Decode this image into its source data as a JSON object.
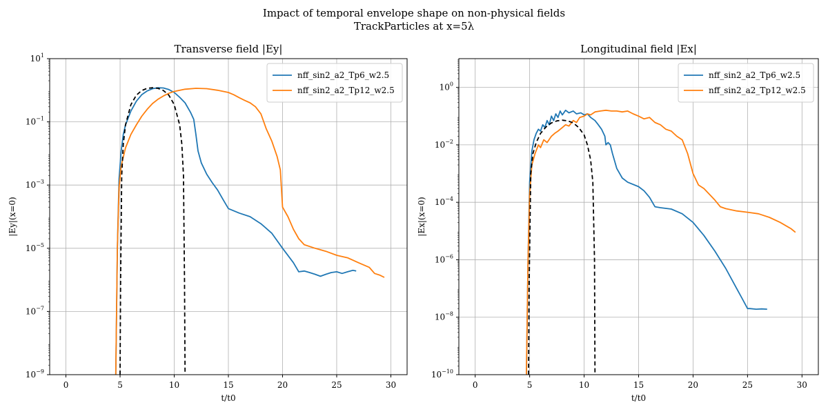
{
  "figure": {
    "title_line1": "Impact of temporal envelope shape on non-physical fields",
    "title_line2": "TrackParticles at x=5λ"
  },
  "colors": {
    "series1": "#1f77b4",
    "series2": "#ff7f0e",
    "reference": "#000000",
    "grid": "#b0b0b0"
  },
  "chart_data": [
    {
      "type": "line",
      "title": "Transverse field |Ey|",
      "xlabel": "t/t0",
      "ylabel": "|Ey|(x=0)",
      "yscale": "log",
      "xlim": [
        -1.5,
        31.5
      ],
      "ylim_exp": [
        -9,
        1
      ],
      "xticks": [
        0,
        5,
        10,
        15,
        20,
        25,
        30
      ],
      "yticks_exp": [
        -9,
        -7,
        -5,
        -3,
        -1,
        1
      ],
      "grid": true,
      "legend_position": "top-right",
      "series": [
        {
          "name": "nff_sin2_a2_Tp6_w2.5",
          "style": "solid",
          "points": [
            [
              4.6,
              1e-09
            ],
            [
              4.75,
              1e-05
            ],
            [
              4.9,
              0.0015
            ],
            [
              5.1,
              0.012
            ],
            [
              5.3,
              0.04
            ],
            [
              5.5,
              0.08
            ],
            [
              6,
              0.22
            ],
            [
              6.5,
              0.45
            ],
            [
              7,
              0.72
            ],
            [
              7.5,
              0.95
            ],
            [
              8,
              1.12
            ],
            [
              8.5,
              1.2
            ],
            [
              9,
              1.18
            ],
            [
              9.5,
              1.05
            ],
            [
              10,
              0.85
            ],
            [
              10.5,
              0.6
            ],
            [
              11,
              0.4
            ],
            [
              11.5,
              0.2
            ],
            [
              11.8,
              0.12
            ],
            [
              12,
              0.04
            ],
            [
              12.2,
              0.012
            ],
            [
              12.5,
              0.005
            ],
            [
              13,
              0.0022
            ],
            [
              13.5,
              0.0012
            ],
            [
              14,
              0.0007
            ],
            [
              14.5,
              0.00035
            ],
            [
              15,
              0.00018
            ],
            [
              16,
              0.00013
            ],
            [
              17,
              0.0001
            ],
            [
              18,
              6e-05
            ],
            [
              19,
              3e-05
            ],
            [
              20,
              1e-05
            ],
            [
              21,
              3.5e-06
            ],
            [
              21.5,
              1.8e-06
            ],
            [
              22,
              1.9e-06
            ],
            [
              22.5,
              1.7e-06
            ],
            [
              23,
              1.5e-06
            ],
            [
              23.5,
              1.3e-06
            ],
            [
              24,
              1.5e-06
            ],
            [
              24.5,
              1.7e-06
            ],
            [
              25,
              1.8e-06
            ],
            [
              25.5,
              1.6e-06
            ],
            [
              26,
              1.8e-06
            ],
            [
              26.5,
              2e-06
            ],
            [
              26.8,
              1.9e-06
            ]
          ]
        },
        {
          "name": "nff_sin2_a2_Tp12_w2.5",
          "style": "solid",
          "points": [
            [
              4.6,
              1e-09
            ],
            [
              4.75,
              1e-05
            ],
            [
              4.9,
              0.0008
            ],
            [
              5.1,
              0.004
            ],
            [
              5.5,
              0.015
            ],
            [
              6,
              0.04
            ],
            [
              6.5,
              0.08
            ],
            [
              7,
              0.15
            ],
            [
              7.5,
              0.25
            ],
            [
              8,
              0.38
            ],
            [
              8.5,
              0.52
            ],
            [
              9,
              0.66
            ],
            [
              9.5,
              0.8
            ],
            [
              10,
              0.92
            ],
            [
              11,
              1.08
            ],
            [
              12,
              1.15
            ],
            [
              13,
              1.12
            ],
            [
              14,
              1.0
            ],
            [
              15,
              0.85
            ],
            [
              15.5,
              0.72
            ],
            [
              16,
              0.58
            ],
            [
              16.5,
              0.48
            ],
            [
              17,
              0.4
            ],
            [
              17.5,
              0.3
            ],
            [
              18,
              0.18
            ],
            [
              18.5,
              0.06
            ],
            [
              19,
              0.025
            ],
            [
              19.5,
              0.008
            ],
            [
              19.8,
              0.003
            ],
            [
              20,
              0.0002
            ],
            [
              20.5,
              0.0001
            ],
            [
              21,
              4e-05
            ],
            [
              21.5,
              2e-05
            ],
            [
              22,
              1.3e-05
            ],
            [
              23,
              1e-05
            ],
            [
              24,
              8e-06
            ],
            [
              25,
              6e-06
            ],
            [
              26,
              5e-06
            ],
            [
              27,
              3.5e-06
            ],
            [
              28,
              2.5e-06
            ],
            [
              28.5,
              1.6e-06
            ],
            [
              29,
              1.4e-06
            ],
            [
              29.4,
              1.2e-06
            ]
          ]
        },
        {
          "name": "",
          "style": "dashed",
          "points": [
            [
              5.0,
              1e-09
            ],
            [
              5.05,
              1e-06
            ],
            [
              5.15,
              0.002
            ],
            [
              5.3,
              0.02
            ],
            [
              5.5,
              0.08
            ],
            [
              6,
              0.35
            ],
            [
              6.5,
              0.7
            ],
            [
              7,
              0.98
            ],
            [
              7.5,
              1.15
            ],
            [
              8,
              1.2
            ],
            [
              8.5,
              1.15
            ],
            [
              9,
              0.98
            ],
            [
              9.5,
              0.7
            ],
            [
              10,
              0.35
            ],
            [
              10.5,
              0.08
            ],
            [
              10.7,
              0.02
            ],
            [
              10.85,
              0.002
            ],
            [
              10.95,
              1e-06
            ],
            [
              11.0,
              1e-09
            ]
          ]
        }
      ]
    },
    {
      "type": "line",
      "title": "Longitudinal field |Ex|",
      "xlabel": "t/t0",
      "ylabel": "|Ex|(x=0)",
      "yscale": "log",
      "xlim": [
        -1.5,
        31.5
      ],
      "ylim_exp": [
        -10,
        1
      ],
      "xticks": [
        0,
        5,
        10,
        15,
        20,
        25,
        30
      ],
      "yticks_exp": [
        -10,
        -8,
        -6,
        -4,
        -2,
        0
      ],
      "grid": true,
      "legend_position": "top-right",
      "series": [
        {
          "name": "nff_sin2_a2_Tp6_w2.5",
          "style": "solid",
          "points": [
            [
              4.7,
              1e-10
            ],
            [
              4.85,
              1e-06
            ],
            [
              5.0,
              0.0005
            ],
            [
              5.2,
              0.006
            ],
            [
              5.4,
              0.015
            ],
            [
              5.6,
              0.025
            ],
            [
              5.8,
              0.035
            ],
            [
              6,
              0.03
            ],
            [
              6.2,
              0.05
            ],
            [
              6.4,
              0.04
            ],
            [
              6.6,
              0.07
            ],
            [
              6.8,
              0.05
            ],
            [
              7,
              0.1
            ],
            [
              7.2,
              0.07
            ],
            [
              7.4,
              0.12
            ],
            [
              7.6,
              0.09
            ],
            [
              7.8,
              0.15
            ],
            [
              8,
              0.11
            ],
            [
              8.3,
              0.16
            ],
            [
              8.6,
              0.13
            ],
            [
              9,
              0.15
            ],
            [
              9.3,
              0.12
            ],
            [
              9.7,
              0.13
            ],
            [
              10,
              0.11
            ],
            [
              10.3,
              0.12
            ],
            [
              10.6,
              0.09
            ],
            [
              11,
              0.07
            ],
            [
              11.3,
              0.05
            ],
            [
              11.6,
              0.035
            ],
            [
              11.9,
              0.02
            ],
            [
              12,
              0.01
            ],
            [
              12.2,
              0.012
            ],
            [
              12.4,
              0.01
            ],
            [
              12.6,
              0.005
            ],
            [
              13,
              0.0015
            ],
            [
              13.5,
              0.0007
            ],
            [
              14,
              0.0005
            ],
            [
              15,
              0.00035
            ],
            [
              15.5,
              0.00025
            ],
            [
              16,
              0.00015
            ],
            [
              16.5,
              7e-05
            ],
            [
              17,
              6.5e-05
            ],
            [
              18,
              5.8e-05
            ],
            [
              19,
              4e-05
            ],
            [
              20,
              2e-05
            ],
            [
              21,
              7e-06
            ],
            [
              22,
              2e-06
            ],
            [
              23,
              5e-07
            ],
            [
              24,
              1e-07
            ],
            [
              24.5,
              4.5e-08
            ],
            [
              25,
              2e-08
            ],
            [
              25.2,
              2e-08
            ],
            [
              25.8,
              1.9e-08
            ],
            [
              26.3,
              1.95e-08
            ],
            [
              26.8,
              1.9e-08
            ]
          ]
        },
        {
          "name": "nff_sin2_a2_Tp12_w2.5",
          "style": "solid",
          "points": [
            [
              4.7,
              1e-10
            ],
            [
              4.85,
              1e-06
            ],
            [
              5.0,
              0.0002
            ],
            [
              5.2,
              0.002
            ],
            [
              5.5,
              0.005
            ],
            [
              5.8,
              0.01
            ],
            [
              6,
              0.008
            ],
            [
              6.3,
              0.015
            ],
            [
              6.6,
              0.012
            ],
            [
              7,
              0.02
            ],
            [
              7.3,
              0.025
            ],
            [
              7.6,
              0.03
            ],
            [
              8,
              0.04
            ],
            [
              8.3,
              0.05
            ],
            [
              8.6,
              0.045
            ],
            [
              9,
              0.07
            ],
            [
              9.3,
              0.06
            ],
            [
              9.6,
              0.09
            ],
            [
              10,
              0.1
            ],
            [
              10.3,
              0.12
            ],
            [
              10.6,
              0.11
            ],
            [
              11,
              0.14
            ],
            [
              11.5,
              0.15
            ],
            [
              12,
              0.16
            ],
            [
              12.5,
              0.15
            ],
            [
              13,
              0.15
            ],
            [
              13.5,
              0.14
            ],
            [
              14,
              0.15
            ],
            [
              14.5,
              0.12
            ],
            [
              15,
              0.1
            ],
            [
              15.5,
              0.08
            ],
            [
              16,
              0.09
            ],
            [
              16.5,
              0.06
            ],
            [
              17,
              0.05
            ],
            [
              17.5,
              0.035
            ],
            [
              18,
              0.03
            ],
            [
              18.5,
              0.02
            ],
            [
              19,
              0.015
            ],
            [
              19.5,
              0.005
            ],
            [
              20,
              0.001
            ],
            [
              20.5,
              0.0004
            ],
            [
              21,
              0.0003
            ],
            [
              22,
              0.00012
            ],
            [
              22.5,
              7e-05
            ],
            [
              23,
              6e-05
            ],
            [
              24,
              5e-05
            ],
            [
              25,
              4.5e-05
            ],
            [
              26,
              4e-05
            ],
            [
              27,
              3e-05
            ],
            [
              28,
              2e-05
            ],
            [
              29,
              1.2e-05
            ],
            [
              29.4,
              9e-06
            ]
          ]
        },
        {
          "name": "",
          "style": "dashed",
          "points": [
            [
              4.9,
              1e-10
            ],
            [
              4.95,
              1e-07
            ],
            [
              5.1,
              0.001
            ],
            [
              5.3,
              0.005
            ],
            [
              5.6,
              0.012
            ],
            [
              6,
              0.025
            ],
            [
              6.5,
              0.042
            ],
            [
              7,
              0.058
            ],
            [
              7.5,
              0.068
            ],
            [
              8,
              0.072
            ],
            [
              8.5,
              0.068
            ],
            [
              9,
              0.058
            ],
            [
              9.5,
              0.04
            ],
            [
              10,
              0.022
            ],
            [
              10.3,
              0.01
            ],
            [
              10.6,
              0.003
            ],
            [
              10.8,
              0.0005
            ],
            [
              10.95,
              1e-06
            ],
            [
              11.0,
              1e-10
            ]
          ]
        }
      ]
    }
  ]
}
